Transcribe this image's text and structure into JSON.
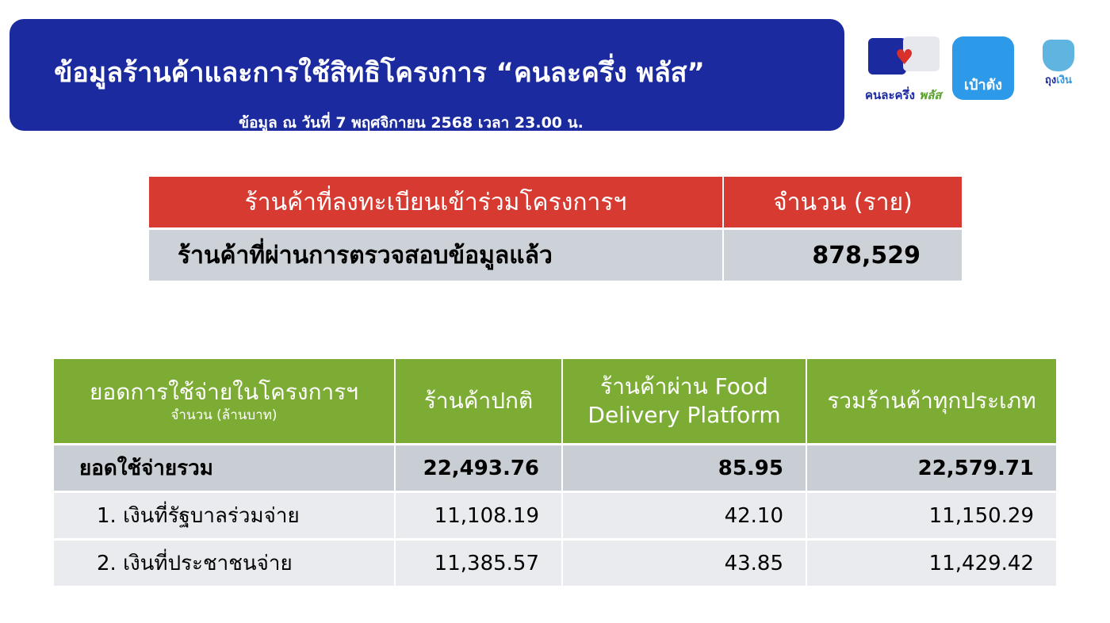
{
  "header": {
    "title": "ข้อมูลร้านค้าและการใช้สิทธิโครงการ “คนละครึ่ง พลัส”",
    "subtitle": "ข้อมูล ณ วันที่ 7 พฤศจิกายน 2568 เวลา 23.00 น."
  },
  "logos": {
    "khon_la_khrueng": {
      "main": "คนละครึ่ง",
      "accent": "พลัส",
      "pieces": [
        "50",
        "50"
      ]
    },
    "pao_tang": "เป๋าตัง",
    "tung_ngoen": {
      "a": "ถุง",
      "b": "เงิน"
    }
  },
  "colors": {
    "header": "#1b2a9e",
    "table1_header": "#d63a31",
    "table2_header": "#7cac34",
    "row": "#cdd2d8"
  },
  "registration": {
    "headers": [
      "ร้านค้าที่ลงทะเบียนเข้าร่วมโครงการฯ",
      "จำนวน (ราย)"
    ],
    "rows": [
      {
        "label": "ร้านค้าที่ผ่านการตรวจสอบข้อมูลแล้ว",
        "value": "878,529"
      }
    ]
  },
  "spending": {
    "headers": {
      "label": "ยอดการใช้จ่ายในโครงการฯ",
      "unit": "จำนวน (ล้านบาท)",
      "regular": "ร้านค้าปกติ",
      "food": "ร้านค้าผ่าน Food Delivery Platform",
      "all": "รวมร้านค้าทุกประเภท"
    },
    "rows": [
      {
        "label": "ยอดใช้จ่ายรวม",
        "regular": "22,493.76",
        "food": "85.95",
        "all": "22,579.71"
      },
      {
        "label": "1. เงินที่รัฐบาลร่วมจ่าย",
        "regular": "11,108.19",
        "food": "42.10",
        "all": "11,150.29"
      },
      {
        "label": "2. เงินที่ประชาชนจ่าย",
        "regular": "11,385.57",
        "food": "43.85",
        "all": "11,429.42"
      }
    ]
  }
}
